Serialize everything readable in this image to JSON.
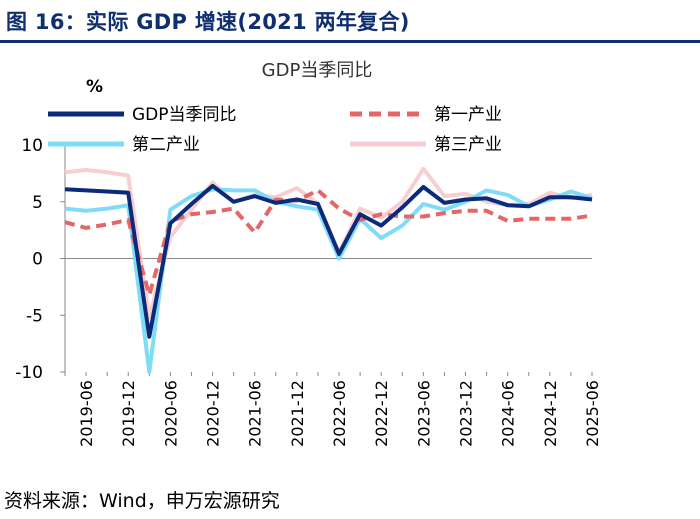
{
  "figure_title": "图 16：实际 GDP 增速(2021 两年复合)",
  "source_note": "资料来源：Wind，申万宏源研究",
  "chart_data": {
    "type": "line",
    "title": "GDP当季同比",
    "unit_label": "%",
    "xlabel": "",
    "ylabel": "%",
    "ylim": [
      -10,
      10
    ],
    "yticks": [
      "10",
      "5",
      "0",
      "-5",
      "-10"
    ],
    "x_tick_labels": [
      "2019-06",
      "2019-12",
      "2020-06",
      "2020-12",
      "2021-06",
      "2021-12",
      "2022-06",
      "2022-12",
      "2023-06",
      "2023-12",
      "2024-06",
      "2024-12",
      "2025-06"
    ],
    "categories": [
      "2019-03",
      "2019-06",
      "2019-09",
      "2019-12",
      "2020-03",
      "2020-06",
      "2020-09",
      "2020-12",
      "2021-03",
      "2021-06",
      "2021-09",
      "2021-12",
      "2022-03",
      "2022-06",
      "2022-09",
      "2022-12",
      "2023-03",
      "2023-06",
      "2023-09",
      "2023-12",
      "2024-03",
      "2024-06",
      "2024-09",
      "2024-12",
      "2025-03",
      "2025-06"
    ],
    "series": [
      {
        "name": "GDP当季同比",
        "color": "#0c2a7a",
        "dash": "solid",
        "values": [
          6.1,
          6.0,
          5.9,
          5.8,
          -6.9,
          3.1,
          4.8,
          6.4,
          5.0,
          5.5,
          4.9,
          5.2,
          4.8,
          0.4,
          3.9,
          2.9,
          4.5,
          6.3,
          4.9,
          5.2,
          5.3,
          4.7,
          4.6,
          5.4,
          5.4,
          5.2
        ]
      },
      {
        "name": "第一产业",
        "color": "#e46767",
        "dash": "dashed",
        "values": [
          3.2,
          2.7,
          3.0,
          3.4,
          -3.2,
          3.3,
          3.9,
          4.1,
          4.4,
          2.3,
          5.2,
          5.1,
          6.0,
          4.4,
          3.4,
          3.9,
          3.7,
          3.7,
          4.0,
          4.2,
          4.2,
          3.3,
          3.5,
          3.5,
          3.5,
          3.8
        ]
      },
      {
        "name": "第二产业",
        "color": "#7fdcf7",
        "dash": "solid",
        "values": [
          4.4,
          4.2,
          4.4,
          4.7,
          -10.0,
          4.3,
          5.5,
          6.1,
          6.0,
          6.0,
          5.0,
          4.6,
          4.3,
          0.0,
          3.5,
          1.8,
          2.9,
          4.8,
          4.3,
          5.0,
          6.0,
          5.6,
          4.6,
          5.2,
          5.9,
          5.3
        ]
      },
      {
        "name": "第三产业",
        "color": "#f7cfd2",
        "dash": "solid",
        "values": [
          7.6,
          7.8,
          7.6,
          7.3,
          -5.2,
          1.9,
          4.3,
          6.7,
          5.0,
          5.6,
          5.4,
          6.2,
          4.8,
          0.5,
          4.4,
          3.6,
          5.0,
          7.9,
          5.5,
          5.7,
          5.0,
          4.7,
          4.8,
          5.8,
          5.3,
          5.6
        ]
      }
    ],
    "legend": {
      "placement": "top",
      "columns": 2
    },
    "grid": false
  }
}
